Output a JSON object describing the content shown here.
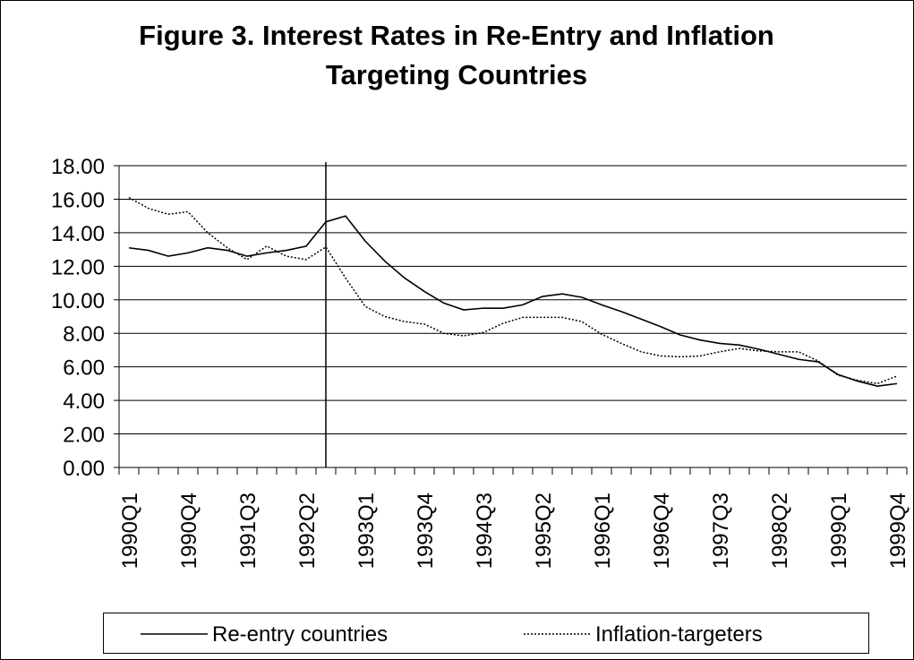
{
  "chart_data": {
    "type": "line",
    "title": "Figure 3. Interest Rates in Re-Entry and Inflation Targeting Countries",
    "categories": [
      "1990Q1",
      null,
      null,
      "1990Q4",
      null,
      null,
      "1991Q3",
      null,
      null,
      "1992Q2",
      null,
      null,
      "1993Q1",
      null,
      null,
      "1993Q4",
      null,
      null,
      "1994Q3",
      null,
      null,
      "1995Q2",
      null,
      null,
      "1996Q1",
      null,
      null,
      "1996Q4",
      null,
      null,
      "1997Q3",
      null,
      null,
      "1998Q2",
      null,
      null,
      "1999Q1",
      null,
      null,
      "1999Q4"
    ],
    "series": [
      {
        "name": "Re-entry countries",
        "color": "#000000",
        "style": "solid",
        "values": [
          13.1,
          12.95,
          12.6,
          12.8,
          13.1,
          12.95,
          12.6,
          12.8,
          12.95,
          13.2,
          14.65,
          15.0,
          13.5,
          12.3,
          11.3,
          10.5,
          9.8,
          9.4,
          9.5,
          9.5,
          9.7,
          10.2,
          10.35,
          10.15,
          9.7,
          9.3,
          8.85,
          8.4,
          7.9,
          7.6,
          7.4,
          7.3,
          7.05,
          6.75,
          6.45,
          6.3,
          5.55,
          5.15,
          4.85,
          5.0
        ]
      },
      {
        "name": "Inflation-targeters",
        "color": "#000000",
        "style": "dotted",
        "values": [
          16.1,
          15.45,
          15.1,
          15.25,
          14.0,
          13.1,
          12.4,
          13.2,
          12.6,
          12.4,
          13.15,
          11.3,
          9.6,
          9.0,
          8.7,
          8.55,
          8.0,
          7.85,
          8.05,
          8.6,
          8.95,
          8.95,
          8.95,
          8.7,
          7.95,
          7.4,
          6.9,
          6.65,
          6.6,
          6.65,
          6.9,
          7.1,
          6.95,
          6.9,
          6.9,
          6.35,
          5.5,
          5.2,
          5.0,
          5.45
        ]
      }
    ],
    "ylim": [
      0,
      18
    ],
    "yticks": [
      {
        "value": 0,
        "label": "0.00"
      },
      {
        "value": 2,
        "label": "2.00"
      },
      {
        "value": 4,
        "label": "4.00"
      },
      {
        "value": 6,
        "label": "6.00"
      },
      {
        "value": 8,
        "label": "8.00"
      },
      {
        "value": 10,
        "label": "10.00"
      },
      {
        "value": 12,
        "label": "12.00"
      },
      {
        "value": 14,
        "label": "14.00"
      },
      {
        "value": 16,
        "label": "16.00"
      },
      {
        "value": 18,
        "label": "18.00"
      }
    ],
    "grid": true,
    "legend": "bottom"
  }
}
